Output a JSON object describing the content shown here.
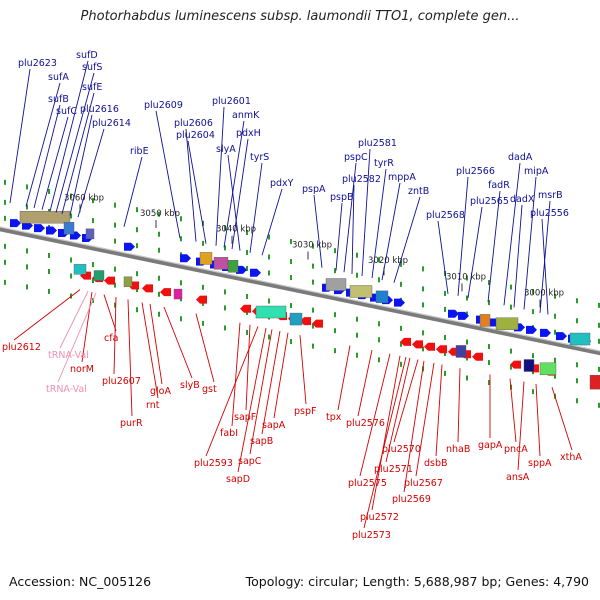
{
  "title": "Photorhabdus luminescens subsp. laumondii TTO1, complete gen...",
  "accession_label": "Accession: NC_005126",
  "summary_label": "Topology: circular; Length: 5,688,987 bp; Genes: 4,790",
  "colors": {
    "forward_gene": "#0a14f0",
    "reverse_gene": "#f01010",
    "forward_label": "#101094",
    "reverse_label": "#d40000",
    "rna_label": "#f090b0",
    "backbone": "#777777",
    "tick": "#2a9a2a"
  },
  "kbp_ticks": [
    "3060 kbp",
    "3050 kbp",
    "3040 kbp",
    "3030 kbp",
    "3020 kbp",
    "3010 kbp",
    "3000 kbp"
  ],
  "forward_labels": [
    "plu2623",
    "sufA",
    "sufB",
    "sufC",
    "sufD",
    "sufS",
    "sufE",
    "plu2616",
    "plu2614",
    "ribE",
    "plu2609",
    "plu2606",
    "plu2604",
    "plu2601",
    "anmK",
    "pdxH",
    "slyA",
    "tyrS",
    "pdxY",
    "pspA",
    "pspB",
    "pspC",
    "plu2582",
    "plu2581",
    "tyrR",
    "mppA",
    "zntB",
    "plu2568",
    "plu2566",
    "plu2565",
    "fadR",
    "dadA",
    "dadX",
    "mipA",
    "msrB",
    "plu2556"
  ],
  "reverse_labels": [
    "plu2612",
    "norM",
    "cfa",
    "plu2607",
    "purR",
    "rnt",
    "gloA",
    "slyB",
    "gst",
    "fabI",
    "sapF",
    "plu2593",
    "sapD",
    "sapC",
    "sapB",
    "sapA",
    "pspF",
    "tpx",
    "plu2576",
    "plu2575",
    "plu2572",
    "plu2573",
    "plu2571",
    "plu2570",
    "plu2569",
    "plu2567",
    "dsbB",
    "nhaB",
    "gapA",
    "pncA",
    "ansA",
    "sppA",
    "xthA"
  ],
  "rna_labels": [
    "tRNA-Val",
    "tRNA-Val"
  ]
}
